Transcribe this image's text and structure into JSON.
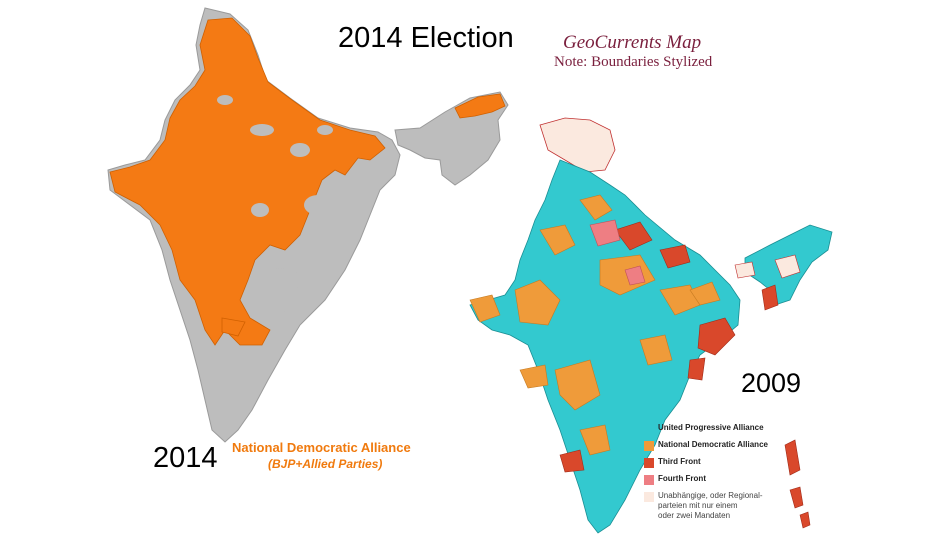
{
  "title": "2014 Election",
  "credit": "GeoCurrents Map",
  "note": "Note: Boundaries Stylized",
  "map_2014": {
    "year": "2014",
    "party_title": "National Democratic Alliance",
    "party_subtitle": "(BJP+Allied Parties)",
    "colors": {
      "nda": "#f47a14",
      "other": "#bdbdbd"
    }
  },
  "map_2009": {
    "year": "2009",
    "legend": [
      {
        "label": "United Progressive Alliance",
        "color": "#33c9cf"
      },
      {
        "label": "National Democratic Alliance",
        "color": "#ef9b3a"
      },
      {
        "label": "Third Front",
        "color": "#d9482b"
      },
      {
        "label": "Fourth Front",
        "color": "#ee7e83"
      },
      {
        "label": "Unabhängige, oder Regional-\nparteien mit nur einem\noder zwei Mandaten",
        "color": "#fbe9df"
      }
    ]
  }
}
